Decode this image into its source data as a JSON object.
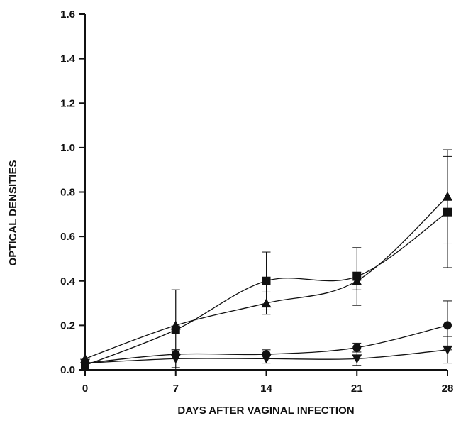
{
  "chart_data": {
    "type": "line",
    "title": "",
    "xlabel": "DAYS AFTER VAGINAL INFECTION",
    "ylabel": "OPTICAL DENSITIES",
    "x": [
      0,
      7,
      14,
      21,
      28
    ],
    "x_ticks": [
      "0",
      "7",
      "14",
      "21",
      "28"
    ],
    "y_ticks": [
      "0.0",
      "0.2",
      "0.4",
      "0.6",
      "0.8",
      "1.0",
      "1.2",
      "1.4",
      "1.6"
    ],
    "xlim": [
      0,
      28
    ],
    "ylim": [
      0,
      1.6
    ],
    "grid": false,
    "series": [
      {
        "marker": "square",
        "values": [
          0.02,
          0.18,
          0.4,
          0.42,
          0.71
        ],
        "err": [
          0,
          0.18,
          0.13,
          0.13,
          0.25
        ]
      },
      {
        "marker": "triangle-up",
        "values": [
          0.05,
          0.2,
          0.3,
          0.4,
          0.78
        ],
        "err": [
          0,
          0.16,
          0.05,
          0.04,
          0.21
        ]
      },
      {
        "marker": "circle",
        "values": [
          0.03,
          0.07,
          0.07,
          0.1,
          0.2
        ],
        "err": [
          0,
          0.02,
          0.02,
          0.02,
          0.11
        ]
      },
      {
        "marker": "triangle-down",
        "values": [
          0.03,
          0.05,
          0.05,
          0.05,
          0.09
        ],
        "err": [
          0,
          0.04,
          0.02,
          0.03,
          0.06
        ]
      }
    ]
  }
}
